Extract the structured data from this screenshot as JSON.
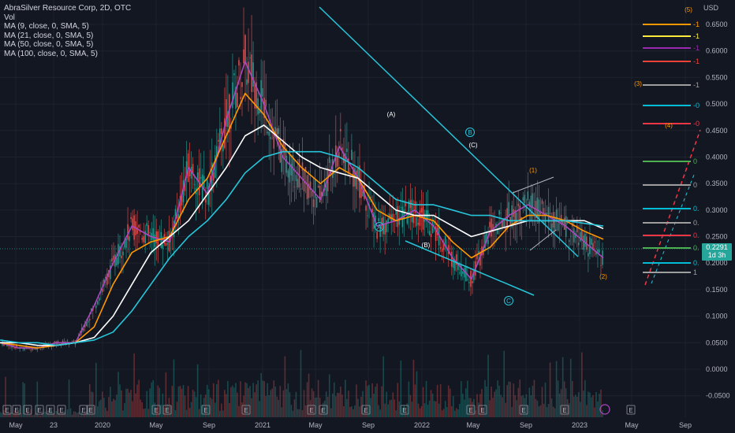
{
  "header": {
    "symbol_line": "AbraSilver Resource Corp, 2D, OTC",
    "vol_label": "Vol",
    "indicators": [
      "MA (9, close, 0, SMA, 5)",
      "MA (21, close, 0, SMA, 5)",
      "MA (50, close, 0, SMA, 5)",
      "MA (100, close, 0, SMA, 5)"
    ]
  },
  "price_axis": {
    "currency": "USD",
    "ticks": [
      "0.6500",
      "0.6000",
      "0.5500",
      "0.5000",
      "0.4500",
      "0.4000",
      "0.3500",
      "0.3000",
      "0.2500",
      "0.2000",
      "0.1500",
      "0.1000",
      "0.0500",
      "0.0000",
      "-0.0500"
    ]
  },
  "last_price": {
    "value": "0.2291",
    "countdown": "1d 3h"
  },
  "chart_data": {
    "type": "line",
    "x_ticks": [
      "May",
      "23",
      "2020",
      "May",
      "Sep",
      "2021",
      "May",
      "Sep",
      "2022",
      "May",
      "Sep",
      "2023",
      "May",
      "Sep"
    ],
    "ylim": [
      -0.06,
      0.68
    ],
    "series": [
      {
        "name": "MA (9, close, 0, SMA, 5)",
        "color": "#ab47bc",
        "values": [
          0.05,
          0.04,
          0.04,
          0.05,
          0.05,
          0.12,
          0.2,
          0.27,
          0.25,
          0.24,
          0.38,
          0.33,
          0.47,
          0.58,
          0.5,
          0.4,
          0.36,
          0.32,
          0.42,
          0.36,
          0.27,
          0.28,
          0.3,
          0.27,
          0.21,
          0.17,
          0.26,
          0.29,
          0.31,
          0.29,
          0.27,
          0.24,
          0.21
        ]
      },
      {
        "name": "MA (21, close, 0, SMA, 5)",
        "color": "#ff9800",
        "values": [
          0.05,
          0.045,
          0.04,
          0.045,
          0.05,
          0.08,
          0.16,
          0.22,
          0.24,
          0.25,
          0.32,
          0.36,
          0.44,
          0.52,
          0.48,
          0.42,
          0.38,
          0.35,
          0.38,
          0.36,
          0.3,
          0.28,
          0.29,
          0.28,
          0.24,
          0.21,
          0.23,
          0.27,
          0.29,
          0.29,
          0.28,
          0.26,
          0.245
        ]
      },
      {
        "name": "MA (50, close, 0, SMA, 5)",
        "color": "#ffffff",
        "values": [
          0.05,
          0.05,
          0.045,
          0.045,
          0.05,
          0.06,
          0.1,
          0.16,
          0.22,
          0.25,
          0.28,
          0.33,
          0.38,
          0.44,
          0.46,
          0.43,
          0.4,
          0.38,
          0.37,
          0.36,
          0.33,
          0.3,
          0.29,
          0.29,
          0.27,
          0.25,
          0.26,
          0.27,
          0.28,
          0.28,
          0.28,
          0.28,
          0.265
        ]
      },
      {
        "name": "MA (100, close, 0, SMA, 5)",
        "color": "#26c6da",
        "values": [
          0.055,
          0.05,
          0.05,
          0.045,
          0.05,
          0.055,
          0.07,
          0.11,
          0.16,
          0.21,
          0.25,
          0.28,
          0.32,
          0.37,
          0.4,
          0.41,
          0.41,
          0.41,
          0.4,
          0.38,
          0.35,
          0.32,
          0.31,
          0.31,
          0.3,
          0.29,
          0.29,
          0.28,
          0.28,
          0.28,
          0.28,
          0.275,
          0.27
        ]
      }
    ],
    "wave_labels": [
      "(A)",
      "(B)",
      "(C)",
      "B",
      "A",
      "C",
      "(1)",
      "(2)",
      "(3)",
      "(4)",
      "(5)"
    ],
    "fib_levels": [
      {
        "color": "#ff9800",
        "label": "-1"
      },
      {
        "color": "#ffeb3b",
        "label": "-1"
      },
      {
        "color": "#9c27b0",
        "label": "-1"
      },
      {
        "color": "#f44336",
        "label": "-1"
      },
      {
        "color": "#9e9e9e",
        "label": "-1"
      },
      {
        "color": "#00bcd4",
        "label": "-0"
      },
      {
        "color": "#f23645",
        "label": "-0"
      },
      {
        "color": "#4caf50",
        "label": "0"
      },
      {
        "color": "#9e9e9e",
        "label": "0"
      },
      {
        "color": "#00bcd4",
        "label": "0."
      },
      {
        "color": "#9e9e9e",
        "label": "0."
      },
      {
        "color": "#f23645",
        "label": "0."
      },
      {
        "color": "#4caf50",
        "label": "0."
      },
      {
        "color": "#00bcd4",
        "label": "0."
      },
      {
        "color": "#9e9e9e",
        "label": "1"
      }
    ],
    "earnings_marker": "E"
  },
  "colors": {
    "background": "#131722",
    "up": "#26a69a",
    "down": "#ef5350",
    "trendline": "#26c6da",
    "grid": "#1e222d"
  }
}
